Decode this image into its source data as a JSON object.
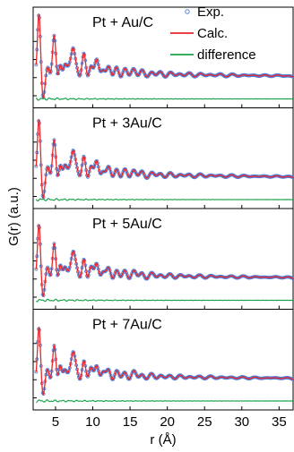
{
  "chart_data": {
    "type": "line",
    "xlabel": "r (Å)",
    "ylabel": "G(r) (a.u.)",
    "xlim": [
      2,
      37
    ],
    "x_ticks": [
      5,
      10,
      15,
      20,
      25,
      30,
      35
    ],
    "legend": {
      "placement": "top-right, first panel",
      "entries": [
        {
          "name": "Exp.",
          "marker": "open-circle",
          "color": "#4f7fd9"
        },
        {
          "name": "Calc.",
          "marker": "line",
          "color": "#e8262b"
        },
        {
          "name": "difference",
          "marker": "line",
          "color": "#1aa24a"
        }
      ]
    },
    "panels": [
      {
        "label": "Pt + Au/C"
      },
      {
        "label": "Pt + 3Au/C"
      },
      {
        "label": "Pt + 5Au/C"
      },
      {
        "label": "Pt + 7Au/C"
      }
    ],
    "peak_positions": [
      2.78,
      3.93,
      4.82,
      5.55,
      6.22,
      6.82,
      7.36,
      7.87,
      8.8,
      9.7,
      10.5,
      11.3,
      12.1,
      13.2,
      14.3,
      15.5,
      16.6,
      17.9,
      19.1,
      20.4,
      21.7,
      23.0,
      24.4,
      25.8,
      27.2,
      28.7,
      30.2,
      31.7,
      33.2,
      34.7,
      36.2
    ],
    "peak_amplitudes": [
      1.0,
      0.18,
      0.68,
      0.36,
      0.28,
      0.22,
      0.52,
      0.3,
      0.42,
      0.26,
      0.34,
      0.2,
      0.24,
      0.2,
      0.17,
      0.18,
      0.14,
      0.12,
      0.11,
      0.1,
      0.09,
      0.085,
      0.08,
      0.075,
      0.07,
      0.065,
      0.06,
      0.055,
      0.05,
      0.048,
      0.045
    ]
  }
}
